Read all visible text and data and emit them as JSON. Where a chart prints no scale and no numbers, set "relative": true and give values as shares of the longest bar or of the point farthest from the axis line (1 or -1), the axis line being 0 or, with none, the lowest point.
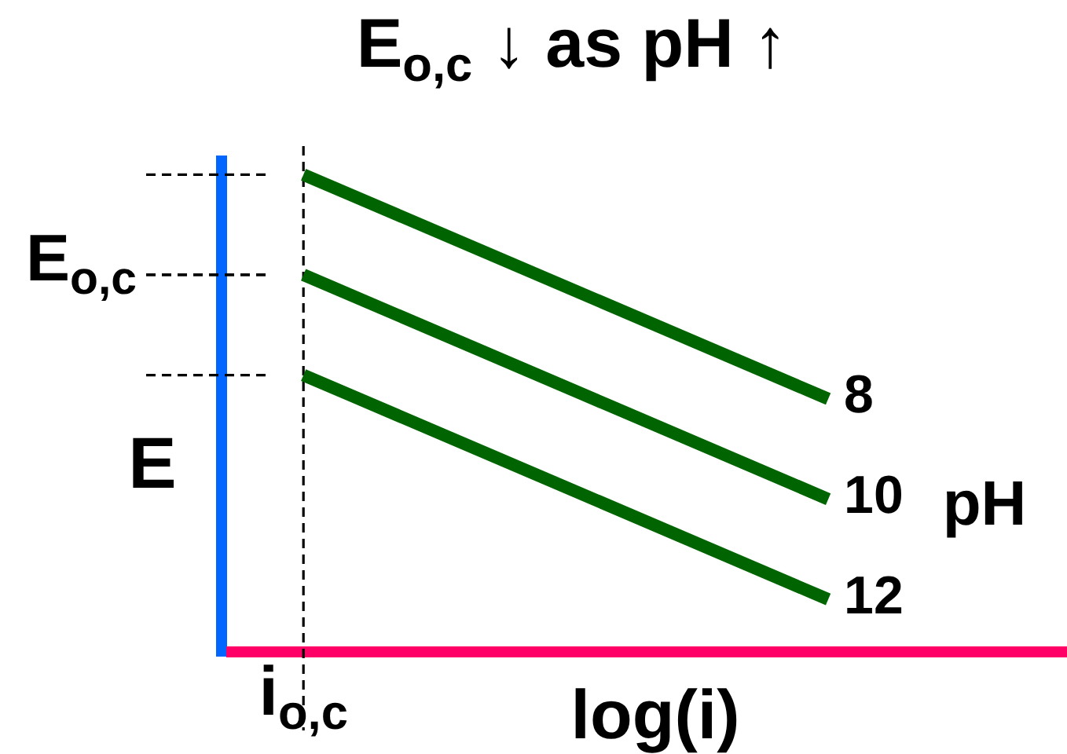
{
  "chart_data": {
    "type": "line",
    "title": "E$_{o,c}$ ↓ as pH ↑",
    "xlabel": "log(i)",
    "ylabel": "E",
    "legend_title": "pH",
    "relative": true,
    "categories": [
      null,
      null
    ],
    "series": [
      {
        "name": "8",
        "color": "#006400",
        "values": [
          1,
          0.53
        ]
      },
      {
        "name": "10",
        "color": "#006400",
        "values": [
          0.79,
          0.32
        ]
      },
      {
        "name": "12",
        "color": "#006400",
        "values": [
          0.58,
          0.11
        ]
      }
    ],
    "ref_lines": [
      {
        "axis": "y",
        "value": 0.79,
        "label": "E$_{o,c}$",
        "color": "#000000",
        "line_style": "dashed"
      }
    ],
    "annotations": [
      "i$_{o,c}$"
    ]
  }
}
